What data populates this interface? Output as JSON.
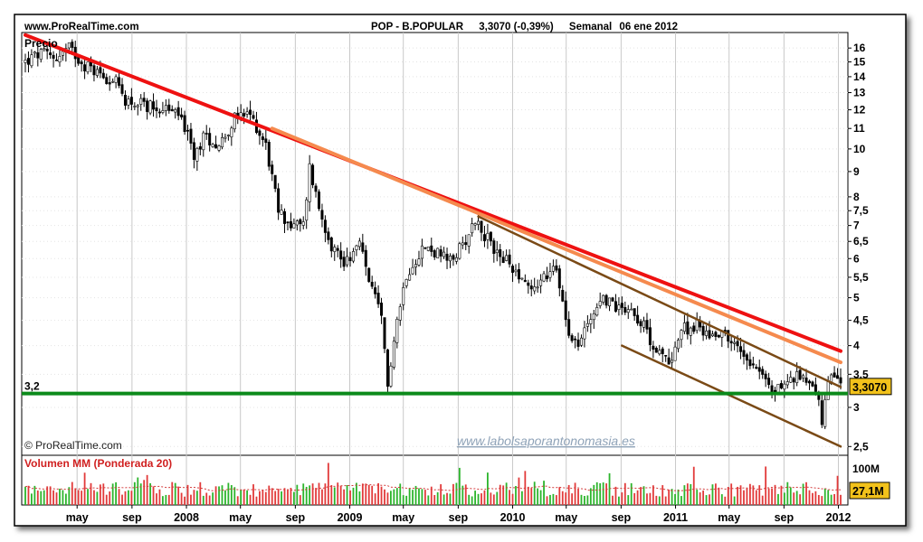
{
  "header": {
    "site": "www.ProRealTime.com",
    "instrument": "POP - B.POPULAR",
    "quote": "3,3070 (-0,39%)",
    "period": "Semanal",
    "date": "06 ene 2012"
  },
  "price_panel_label": "Precio",
  "volume_panel_label": "Volumen MM (Ponderada 20)",
  "copyright": "© ProRealTime.com",
  "watermark": "www.labolsaporantonomasia.es",
  "support_label": "3,2",
  "last_price_label": "3,3070",
  "volume_axis_top_label": "100M",
  "last_volume_label": "27,1M",
  "colors": {
    "candle_up": "#ffffff",
    "candle_down": "#000000",
    "resistance_red": "#ee1111",
    "resistance_orange": "#f58a4e",
    "channel_brown": "#7a4a16",
    "support_green": "#0b8a1b",
    "volume_up": "#2cb52c",
    "volume_down": "#e23a3a",
    "volume_ma": "#d33a3a",
    "last_price_box": "#f2c21b"
  },
  "chart_data": {
    "type": "candlestick",
    "panels": [
      "price",
      "volume"
    ],
    "y_scale": "log",
    "ylim": [
      2.4,
      17.2
    ],
    "ytick_labels": [
      "16",
      "15",
      "14",
      "13",
      "12",
      "11",
      "10",
      "9",
      "8",
      "7,5",
      "7",
      "6,5",
      "6",
      "5,5",
      "5",
      "4,5",
      "4",
      "3,5",
      "3",
      "2,5"
    ],
    "ytick_values": [
      16,
      15,
      14,
      13,
      12,
      11,
      10,
      9,
      8,
      7.5,
      7,
      6.5,
      6,
      5.5,
      5,
      4.5,
      4,
      3.5,
      3,
      2.5
    ],
    "xlim": [
      "2007-01-05",
      "2012-01-06"
    ],
    "xtick_labels": [
      "may",
      "sep",
      "2008",
      "may",
      "sep",
      "2009",
      "may",
      "sep",
      "2010",
      "may",
      "sep",
      "2011",
      "may",
      "sep",
      "2012"
    ],
    "xtick_dates": [
      "2007-05-01",
      "2007-09-01",
      "2008-01-01",
      "2008-05-01",
      "2008-09-01",
      "2009-01-01",
      "2009-05-01",
      "2009-09-01",
      "2010-01-01",
      "2010-05-01",
      "2010-09-01",
      "2011-01-01",
      "2011-05-01",
      "2011-09-01",
      "2012-01-01"
    ],
    "grid": true,
    "close_path": [
      {
        "x": "2007-01-05",
        "y": 15.0
      },
      {
        "x": "2007-02-09",
        "y": 15.6
      },
      {
        "x": "2007-03-16",
        "y": 15.3
      },
      {
        "x": "2007-04-13",
        "y": 16.0
      },
      {
        "x": "2007-05-18",
        "y": 14.8
      },
      {
        "x": "2007-06-22",
        "y": 14.2
      },
      {
        "x": "2007-07-27",
        "y": 13.6
      },
      {
        "x": "2007-08-17",
        "y": 12.6
      },
      {
        "x": "2007-09-14",
        "y": 12.3
      },
      {
        "x": "2007-10-19",
        "y": 12.2
      },
      {
        "x": "2007-11-23",
        "y": 12.0
      },
      {
        "x": "2007-12-21",
        "y": 11.6
      },
      {
        "x": "2008-01-18",
        "y": 9.6
      },
      {
        "x": "2008-02-08",
        "y": 10.6
      },
      {
        "x": "2008-03-14",
        "y": 10.2
      },
      {
        "x": "2008-04-18",
        "y": 11.5
      },
      {
        "x": "2008-05-23",
        "y": 11.7
      },
      {
        "x": "2008-06-27",
        "y": 10.2
      },
      {
        "x": "2008-07-25",
        "y": 7.5
      },
      {
        "x": "2008-08-22",
        "y": 7.0
      },
      {
        "x": "2008-09-19",
        "y": 7.0
      },
      {
        "x": "2008-10-03",
        "y": 9.2
      },
      {
        "x": "2008-10-24",
        "y": 7.6
      },
      {
        "x": "2008-11-21",
        "y": 6.4
      },
      {
        "x": "2008-12-19",
        "y": 5.9
      },
      {
        "x": "2009-01-23",
        "y": 6.4
      },
      {
        "x": "2009-02-20",
        "y": 5.2
      },
      {
        "x": "2009-03-13",
        "y": 4.5
      },
      {
        "x": "2009-03-27",
        "y": 3.3
      },
      {
        "x": "2009-04-10",
        "y": 4.2
      },
      {
        "x": "2009-05-08",
        "y": 5.6
      },
      {
        "x": "2009-06-12",
        "y": 6.3
      },
      {
        "x": "2009-07-10",
        "y": 6.2
      },
      {
        "x": "2009-08-14",
        "y": 5.9
      },
      {
        "x": "2009-09-11",
        "y": 6.4
      },
      {
        "x": "2009-10-09",
        "y": 7.2
      },
      {
        "x": "2009-11-13",
        "y": 6.4
      },
      {
        "x": "2009-12-11",
        "y": 6.0
      },
      {
        "x": "2010-01-15",
        "y": 5.6
      },
      {
        "x": "2010-02-12",
        "y": 5.2
      },
      {
        "x": "2010-03-12",
        "y": 5.5
      },
      {
        "x": "2010-04-09",
        "y": 5.7
      },
      {
        "x": "2010-05-07",
        "y": 4.3
      },
      {
        "x": "2010-05-28",
        "y": 4.0
      },
      {
        "x": "2010-06-25",
        "y": 4.6
      },
      {
        "x": "2010-07-23",
        "y": 5.0
      },
      {
        "x": "2010-08-20",
        "y": 4.8
      },
      {
        "x": "2010-09-17",
        "y": 4.8
      },
      {
        "x": "2010-10-15",
        "y": 4.5
      },
      {
        "x": "2010-11-19",
        "y": 3.9
      },
      {
        "x": "2010-12-17",
        "y": 3.7
      },
      {
        "x": "2011-01-14",
        "y": 4.3
      },
      {
        "x": "2011-02-18",
        "y": 4.4
      },
      {
        "x": "2011-03-18",
        "y": 4.2
      },
      {
        "x": "2011-04-15",
        "y": 4.3
      },
      {
        "x": "2011-05-13",
        "y": 4.0
      },
      {
        "x": "2011-06-10",
        "y": 3.8
      },
      {
        "x": "2011-07-08",
        "y": 3.6
      },
      {
        "x": "2011-08-05",
        "y": 3.2
      },
      {
        "x": "2011-08-19",
        "y": 3.3
      },
      {
        "x": "2011-09-16",
        "y": 3.4
      },
      {
        "x": "2011-10-14",
        "y": 3.5
      },
      {
        "x": "2011-11-11",
        "y": 3.3
      },
      {
        "x": "2011-11-25",
        "y": 2.8
      },
      {
        "x": "2011-12-09",
        "y": 3.3
      },
      {
        "x": "2011-12-23",
        "y": 3.5
      },
      {
        "x": "2012-01-06",
        "y": 3.307
      }
    ],
    "trend_lines": [
      {
        "color": "resistance_red",
        "from": {
          "x": "2007-01-05",
          "y": 17.0
        },
        "to": {
          "x": "2012-01-06",
          "y": 3.9
        }
      },
      {
        "color": "resistance_orange",
        "from": {
          "x": "2008-07-11",
          "y": 11.0
        },
        "to": {
          "x": "2012-01-06",
          "y": 3.7
        }
      },
      {
        "color": "channel_brown",
        "from": {
          "x": "2009-10-16",
          "y": 7.3
        },
        "to": {
          "x": "2012-01-06",
          "y": 3.3
        }
      },
      {
        "color": "channel_brown",
        "from": {
          "x": "2010-09-03",
          "y": 4.0
        },
        "to": {
          "x": "2012-01-06",
          "y": 2.5
        }
      }
    ],
    "horizontal_lines": [
      {
        "color": "support_green",
        "y": 3.2
      }
    ],
    "volume_ma_period": 20
  }
}
